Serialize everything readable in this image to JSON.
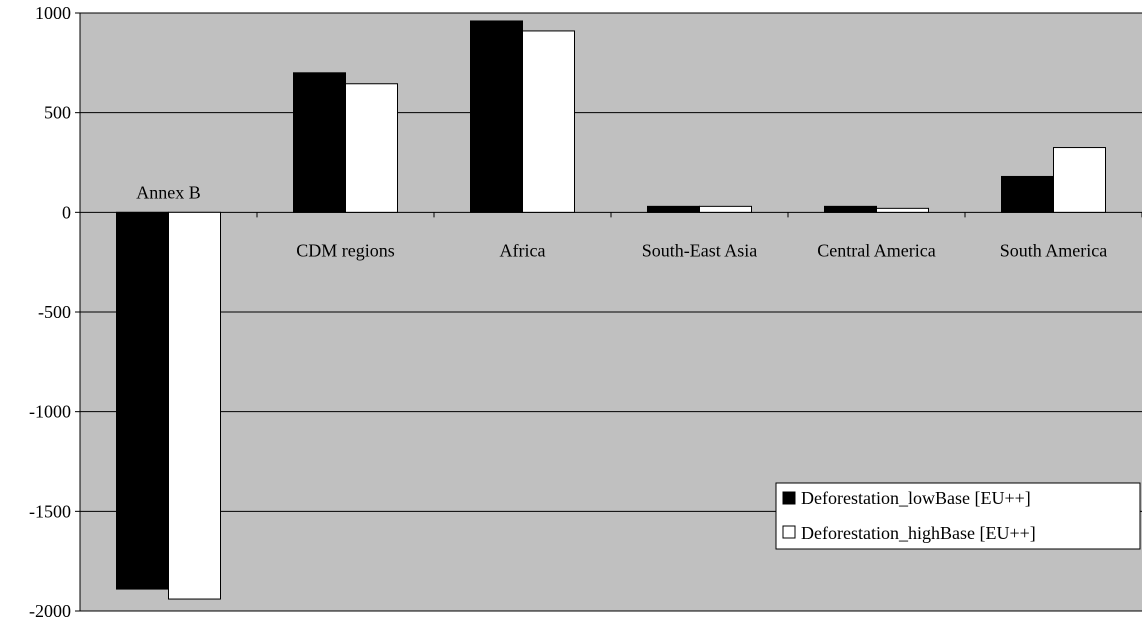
{
  "chart_data": {
    "type": "bar",
    "categories": [
      "Annex B",
      "CDM regions",
      "Africa",
      "South-East Asia",
      "Central America",
      "South America"
    ],
    "series": [
      {
        "name": "Deforestation_lowBase [EU++]",
        "color": "#000000",
        "values": [
          -1890,
          700,
          960,
          30,
          30,
          180
        ]
      },
      {
        "name": "Deforestation_highBase [EU++]",
        "color": "#ffffff",
        "values": [
          -1940,
          645,
          910,
          30,
          20,
          325
        ]
      }
    ],
    "ylim": [
      -2000,
      1000
    ],
    "yticks": [
      1000,
      500,
      0,
      -500,
      -1000,
      -1500,
      -2000
    ],
    "grid": true,
    "legend_position": "bottom-right",
    "plot_background": "#c0c0c0",
    "category_labels_above_bars": [
      "Annex B"
    ]
  }
}
